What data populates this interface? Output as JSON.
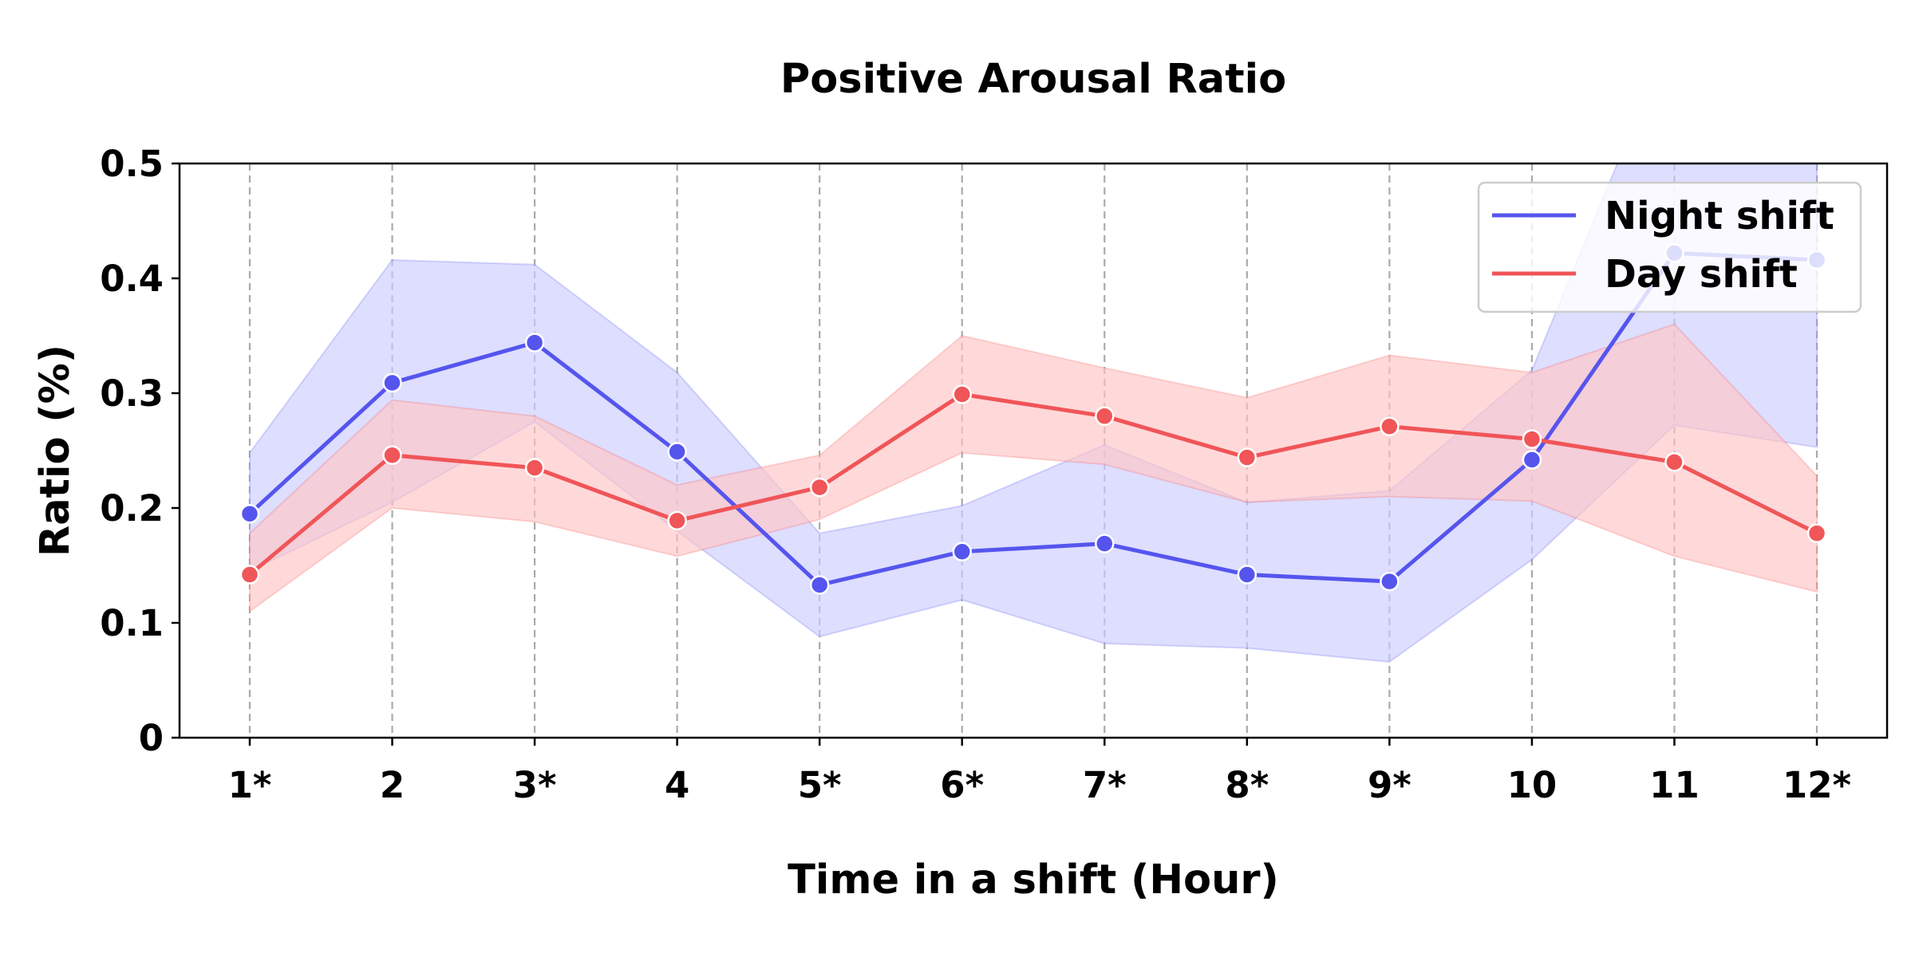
{
  "chart_data": {
    "type": "line",
    "title": "Positive Arousal Ratio",
    "xlabel": "Time in a shift (Hour)",
    "ylabel": "Ratio (%)",
    "categories": [
      "1*",
      "2",
      "3*",
      "4",
      "5*",
      "6*",
      "7*",
      "8*",
      "9*",
      "10",
      "11",
      "12*"
    ],
    "ylim": [
      0,
      0.5
    ],
    "yticks": [
      0,
      0.1,
      0.2,
      0.3,
      0.4,
      0.5
    ],
    "ytick_labels": [
      "0",
      "0.1",
      "0.2",
      "0.3",
      "0.4",
      "0.5"
    ],
    "grid": "vertical dashed",
    "legend_position": "top-right",
    "series": [
      {
        "name": "Night shift",
        "color": "#5555ee",
        "band_color": "#ccccff",
        "values": [
          0.195,
          0.309,
          0.344,
          0.249,
          0.133,
          0.162,
          0.169,
          0.142,
          0.136,
          0.242,
          0.422,
          0.416
        ],
        "lower": [
          0.145,
          0.205,
          0.275,
          0.18,
          0.088,
          0.12,
          0.082,
          0.078,
          0.066,
          0.155,
          0.272,
          0.253
        ],
        "upper": [
          0.248,
          0.416,
          0.412,
          0.318,
          0.178,
          0.202,
          0.255,
          0.205,
          0.215,
          0.32,
          0.62,
          0.6
        ]
      },
      {
        "name": "Day shift",
        "color": "#f05558",
        "band_color": "#ffc4c4",
        "values": [
          0.142,
          0.246,
          0.235,
          0.189,
          0.218,
          0.299,
          0.28,
          0.244,
          0.271,
          0.26,
          0.24,
          0.178
        ],
        "lower": [
          0.11,
          0.2,
          0.188,
          0.158,
          0.19,
          0.248,
          0.238,
          0.205,
          0.21,
          0.206,
          0.158,
          0.127
        ],
        "upper": [
          0.178,
          0.294,
          0.28,
          0.22,
          0.246,
          0.35,
          0.322,
          0.296,
          0.333,
          0.318,
          0.36,
          0.228
        ]
      }
    ]
  }
}
